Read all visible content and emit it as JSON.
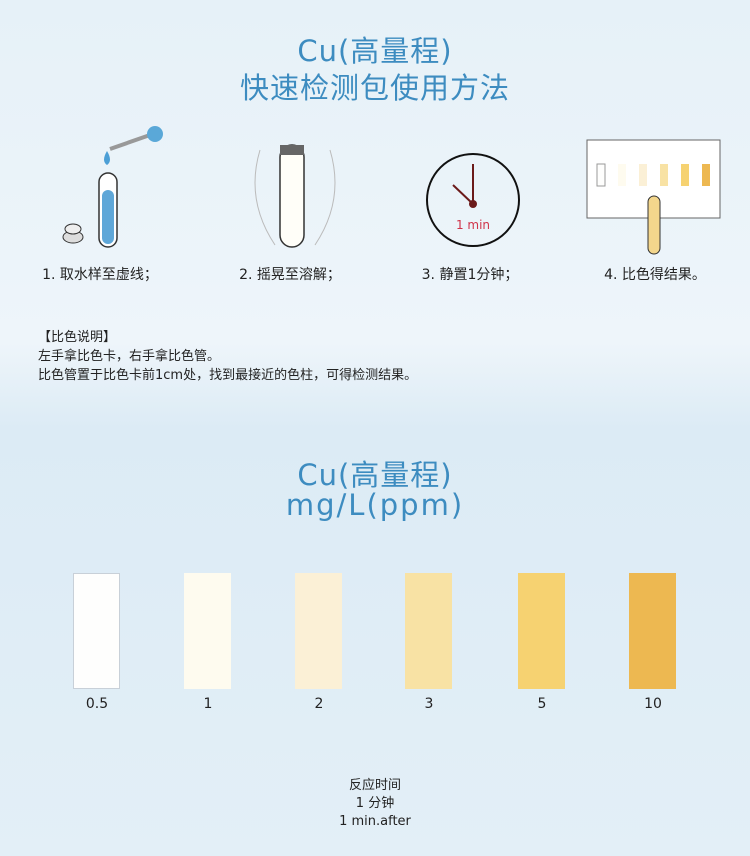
{
  "header": {
    "title_line1": "Cu(高量程)",
    "title_line2": "快速检测包使用方法"
  },
  "steps": [
    {
      "label": "1. 取水样至虚线；",
      "icon": "dropper-tube-icon"
    },
    {
      "label": "2. 摇晃至溶解；",
      "icon": "shake-tube-icon"
    },
    {
      "label": "3. 静置1分钟；",
      "icon": "clock-icon",
      "clock_text": "1 min"
    },
    {
      "label": "4. 比色得结果。",
      "icon": "color-card-icon"
    }
  ],
  "notes": {
    "heading": "【比色说明】",
    "line1": "左手拿比色卡，右手拿比色管。",
    "line2": "比色管置于比色卡前1cm处，找到最接近的色柱，可得检测结果。"
  },
  "chart": {
    "title_line1": "Cu(高量程)",
    "title_line2": "mg/L(ppm)"
  },
  "chart_data": {
    "type": "table",
    "categories": [
      "0.5",
      "1",
      "2",
      "3",
      "5",
      "10"
    ],
    "colors": [
      "#fefefd",
      "#fefbef",
      "#fbf0d6",
      "#f8e2a4",
      "#f6d271",
      "#edb851"
    ]
  },
  "footer": {
    "line1": "反应时间",
    "line2": "1  分钟",
    "line3": "1  min.after"
  },
  "accent": "#3d8cc0"
}
